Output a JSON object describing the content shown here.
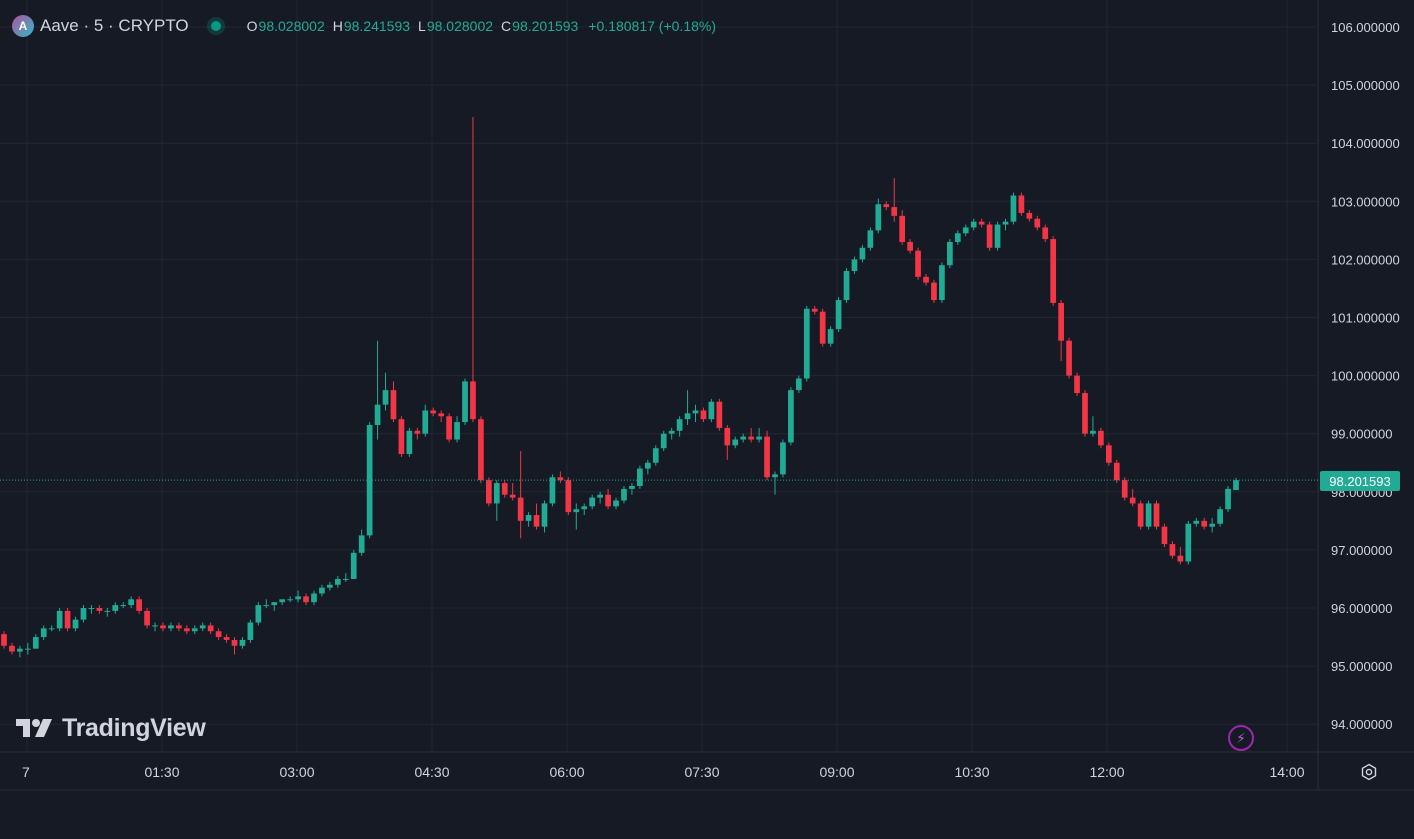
{
  "legend": {
    "symbol": "Aave · 5 · CRYPTO",
    "logo_letter": "A",
    "open_key": "O",
    "open": "98.028002",
    "high_key": "H",
    "high": "98.241593",
    "low_key": "L",
    "low": "98.028002",
    "close_key": "C",
    "close": "98.201593",
    "change": "+0.180817 (+0.18%)"
  },
  "last_price_label": "98.201593",
  "brand": "TradingView",
  "colors": {
    "background": "#161a25",
    "up": "#22ab94",
    "down": "#f23645",
    "grid": "#232733",
    "axis_text": "#d1d4dc",
    "price_line": "#22ab94"
  },
  "icons": {
    "logo": "aave-logo-icon",
    "brand": "tradingview-logo-icon",
    "bolt": "lightning-icon",
    "settings": "gear-icon"
  },
  "chart_data": {
    "type": "candlestick",
    "title": "Aave · 5 · CRYPTO",
    "x_ticks": [
      {
        "label": "7",
        "t": 0.0
      },
      {
        "label": "01:30",
        "t": 1.5
      },
      {
        "label": "03:00",
        "t": 3.0
      },
      {
        "label": "04:30",
        "t": 4.5
      },
      {
        "label": "06:00",
        "t": 6.0
      },
      {
        "label": "07:30",
        "t": 7.5
      },
      {
        "label": "09:00",
        "t": 9.0
      },
      {
        "label": "10:30",
        "t": 10.5
      },
      {
        "label": "12:00",
        "t": 12.0
      },
      {
        "label": "14:00",
        "t": 14.0
      }
    ],
    "y_ticks": [
      "94.000000",
      "95.000000",
      "96.000000",
      "97.000000",
      "98.000000",
      "99.000000",
      "100.000000",
      "101.000000",
      "102.000000",
      "103.000000",
      "104.000000",
      "105.000000",
      "106.000000"
    ],
    "ylim": [
      93.5,
      106.3
    ],
    "xlim_hours": [
      -0.22,
      15.0
    ],
    "last_price": 98.201593,
    "bar_minutes": 5,
    "candles": [
      [
        95.55,
        95.6,
        95.3,
        95.35
      ],
      [
        95.35,
        95.4,
        95.2,
        95.25
      ],
      [
        95.25,
        95.35,
        95.15,
        95.3
      ],
      [
        95.3,
        95.4,
        95.2,
        95.3
      ],
      [
        95.3,
        95.55,
        95.3,
        95.5
      ],
      [
        95.5,
        95.7,
        95.45,
        95.65
      ],
      [
        95.65,
        95.7,
        95.6,
        95.65
      ],
      [
        95.65,
        96.0,
        95.6,
        95.95
      ],
      [
        95.95,
        96.0,
        95.6,
        95.65
      ],
      [
        95.65,
        95.85,
        95.6,
        95.8
      ],
      [
        95.8,
        96.05,
        95.75,
        96.0
      ],
      [
        96.0,
        96.05,
        95.9,
        96.0
      ],
      [
        96.0,
        96.05,
        95.9,
        95.95
      ],
      [
        95.95,
        96.0,
        95.85,
        95.95
      ],
      [
        95.95,
        96.1,
        95.9,
        96.05
      ],
      [
        96.05,
        96.1,
        96.0,
        96.05
      ],
      [
        96.05,
        96.2,
        96.0,
        96.15
      ],
      [
        96.15,
        96.2,
        95.9,
        95.95
      ],
      [
        95.95,
        96.0,
        95.65,
        95.7
      ],
      [
        95.7,
        95.75,
        95.6,
        95.7
      ],
      [
        95.7,
        95.75,
        95.6,
        95.65
      ],
      [
        95.65,
        95.75,
        95.6,
        95.7
      ],
      [
        95.7,
        95.75,
        95.6,
        95.65
      ],
      [
        95.65,
        95.7,
        95.55,
        95.6
      ],
      [
        95.6,
        95.7,
        95.55,
        95.65
      ],
      [
        95.65,
        95.75,
        95.6,
        95.7
      ],
      [
        95.7,
        95.75,
        95.55,
        95.6
      ],
      [
        95.6,
        95.65,
        95.45,
        95.5
      ],
      [
        95.5,
        95.55,
        95.4,
        95.45
      ],
      [
        95.45,
        95.5,
        95.2,
        95.35
      ],
      [
        95.35,
        95.5,
        95.3,
        95.45
      ],
      [
        95.45,
        95.8,
        95.4,
        95.75
      ],
      [
        95.75,
        96.1,
        95.7,
        96.05
      ],
      [
        96.05,
        96.15,
        96.0,
        96.05
      ],
      [
        96.05,
        96.1,
        95.95,
        96.1
      ],
      [
        96.1,
        96.15,
        96.05,
        96.15
      ],
      [
        96.15,
        96.2,
        96.1,
        96.15
      ],
      [
        96.15,
        96.3,
        96.1,
        96.2
      ],
      [
        96.2,
        96.25,
        96.05,
        96.1
      ],
      [
        96.1,
        96.3,
        96.05,
        96.25
      ],
      [
        96.25,
        96.4,
        96.2,
        96.35
      ],
      [
        96.35,
        96.45,
        96.3,
        96.4
      ],
      [
        96.4,
        96.55,
        96.35,
        96.5
      ],
      [
        96.5,
        96.6,
        96.45,
        96.5
      ],
      [
        96.5,
        97.0,
        96.5,
        96.95
      ],
      [
        96.95,
        97.35,
        96.9,
        97.25
      ],
      [
        97.25,
        99.2,
        97.2,
        99.15
      ],
      [
        99.15,
        100.6,
        98.9,
        99.5
      ],
      [
        99.5,
        100.05,
        99.4,
        99.75
      ],
      [
        99.75,
        99.9,
        99.2,
        99.25
      ],
      [
        99.25,
        99.3,
        98.6,
        98.65
      ],
      [
        98.65,
        99.1,
        98.6,
        99.05
      ],
      [
        99.05,
        99.1,
        98.9,
        99.0
      ],
      [
        99.0,
        99.5,
        98.95,
        99.4
      ],
      [
        99.4,
        99.45,
        99.3,
        99.35
      ],
      [
        99.35,
        99.4,
        99.2,
        99.3
      ],
      [
        99.3,
        99.35,
        98.85,
        98.9
      ],
      [
        98.9,
        99.3,
        98.85,
        99.2
      ],
      [
        99.2,
        99.95,
        99.15,
        99.9
      ],
      [
        99.9,
        104.45,
        99.2,
        99.25
      ],
      [
        99.25,
        99.3,
        98.15,
        98.2
      ],
      [
        98.2,
        98.25,
        97.75,
        97.8
      ],
      [
        97.8,
        98.2,
        97.5,
        98.15
      ],
      [
        98.15,
        98.2,
        97.9,
        97.95
      ],
      [
        97.95,
        98.15,
        97.85,
        97.9
      ],
      [
        97.9,
        98.7,
        97.2,
        97.5
      ],
      [
        97.5,
        97.65,
        97.4,
        97.6
      ],
      [
        97.6,
        97.8,
        97.35,
        97.4
      ],
      [
        97.4,
        97.85,
        97.3,
        97.8
      ],
      [
        97.8,
        98.3,
        97.75,
        98.25
      ],
      [
        98.25,
        98.35,
        98.15,
        98.2
      ],
      [
        98.2,
        98.25,
        97.6,
        97.65
      ],
      [
        97.65,
        97.8,
        97.35,
        97.7
      ],
      [
        97.7,
        97.8,
        97.6,
        97.75
      ],
      [
        97.75,
        97.95,
        97.7,
        97.9
      ],
      [
        97.9,
        98.0,
        97.8,
        97.95
      ],
      [
        97.95,
        98.05,
        97.7,
        97.75
      ],
      [
        97.75,
        97.9,
        97.7,
        97.85
      ],
      [
        97.85,
        98.1,
        97.8,
        98.05
      ],
      [
        98.05,
        98.15,
        97.95,
        98.1
      ],
      [
        98.1,
        98.45,
        98.05,
        98.4
      ],
      [
        98.4,
        98.55,
        98.3,
        98.5
      ],
      [
        98.5,
        98.8,
        98.45,
        98.75
      ],
      [
        98.75,
        99.05,
        98.7,
        99.0
      ],
      [
        99.0,
        99.1,
        98.9,
        99.05
      ],
      [
        99.05,
        99.3,
        98.95,
        99.25
      ],
      [
        99.25,
        99.75,
        99.15,
        99.35
      ],
      [
        99.35,
        99.5,
        99.2,
        99.4
      ],
      [
        99.4,
        99.45,
        99.2,
        99.25
      ],
      [
        99.25,
        99.6,
        99.2,
        99.55
      ],
      [
        99.55,
        99.6,
        99.05,
        99.1
      ],
      [
        99.1,
        99.15,
        98.55,
        98.8
      ],
      [
        98.8,
        98.95,
        98.75,
        98.9
      ],
      [
        98.9,
        99.0,
        98.85,
        98.95
      ],
      [
        98.95,
        99.1,
        98.85,
        98.9
      ],
      [
        98.9,
        99.1,
        98.85,
        98.95
      ],
      [
        98.95,
        99.05,
        98.2,
        98.25
      ],
      [
        98.25,
        98.35,
        97.95,
        98.3
      ],
      [
        98.3,
        98.9,
        98.25,
        98.85
      ],
      [
        98.85,
        99.8,
        98.8,
        99.75
      ],
      [
        99.75,
        100.0,
        99.7,
        99.95
      ],
      [
        99.95,
        101.2,
        99.9,
        101.15
      ],
      [
        101.15,
        101.2,
        101.05,
        101.1
      ],
      [
        101.1,
        101.15,
        100.5,
        100.55
      ],
      [
        100.55,
        100.85,
        100.5,
        100.8
      ],
      [
        100.8,
        101.35,
        100.75,
        101.3
      ],
      [
        101.3,
        101.85,
        101.25,
        101.8
      ],
      [
        101.8,
        102.05,
        101.75,
        102.0
      ],
      [
        102.0,
        102.25,
        101.95,
        102.2
      ],
      [
        102.2,
        102.55,
        102.15,
        102.5
      ],
      [
        102.5,
        103.05,
        102.45,
        102.95
      ],
      [
        102.95,
        103.0,
        102.85,
        102.9
      ],
      [
        102.9,
        103.4,
        102.65,
        102.75
      ],
      [
        102.75,
        102.85,
        102.25,
        102.3
      ],
      [
        102.3,
        102.35,
        102.1,
        102.15
      ],
      [
        102.15,
        102.2,
        101.65,
        101.7
      ],
      [
        101.7,
        101.75,
        101.55,
        101.6
      ],
      [
        101.6,
        101.65,
        101.25,
        101.3
      ],
      [
        101.3,
        101.95,
        101.25,
        101.9
      ],
      [
        101.9,
        102.35,
        101.85,
        102.3
      ],
      [
        102.3,
        102.5,
        102.25,
        102.45
      ],
      [
        102.45,
        102.6,
        102.4,
        102.55
      ],
      [
        102.55,
        102.7,
        102.5,
        102.65
      ],
      [
        102.65,
        102.7,
        102.55,
        102.6
      ],
      [
        102.6,
        102.65,
        102.15,
        102.2
      ],
      [
        102.2,
        102.65,
        102.15,
        102.6
      ],
      [
        102.6,
        102.7,
        102.5,
        102.65
      ],
      [
        102.65,
        103.15,
        102.6,
        103.1
      ],
      [
        103.1,
        103.15,
        102.75,
        102.8
      ],
      [
        102.8,
        102.85,
        102.65,
        102.7
      ],
      [
        102.7,
        102.75,
        102.5,
        102.55
      ],
      [
        102.55,
        102.6,
        102.3,
        102.35
      ],
      [
        102.35,
        102.4,
        101.2,
        101.25
      ],
      [
        101.25,
        101.3,
        100.25,
        100.6
      ],
      [
        100.6,
        100.65,
        99.95,
        100.0
      ],
      [
        100.0,
        100.05,
        99.65,
        99.7
      ],
      [
        99.7,
        99.75,
        98.95,
        99.0
      ],
      [
        99.0,
        99.3,
        98.95,
        99.05
      ],
      [
        99.05,
        99.1,
        98.75,
        98.8
      ],
      [
        98.8,
        98.85,
        98.45,
        98.5
      ],
      [
        98.5,
        98.55,
        98.15,
        98.2
      ],
      [
        98.2,
        98.25,
        97.85,
        97.9
      ],
      [
        97.9,
        98.05,
        97.75,
        97.8
      ],
      [
        97.8,
        97.85,
        97.35,
        97.4
      ],
      [
        97.4,
        97.85,
        97.35,
        97.8
      ],
      [
        97.8,
        97.85,
        97.35,
        97.4
      ],
      [
        97.4,
        97.45,
        97.05,
        97.1
      ],
      [
        97.1,
        97.15,
        96.85,
        96.9
      ],
      [
        96.9,
        97.05,
        96.75,
        96.8
      ],
      [
        96.8,
        97.5,
        96.75,
        97.45
      ],
      [
        97.45,
        97.55,
        97.4,
        97.5
      ],
      [
        97.5,
        97.55,
        97.35,
        97.4
      ],
      [
        97.4,
        97.55,
        97.3,
        97.45
      ],
      [
        97.45,
        97.75,
        97.4,
        97.7
      ],
      [
        97.7,
        98.1,
        97.65,
        98.05
      ],
      [
        98.03,
        98.24,
        98.03,
        98.2
      ]
    ]
  }
}
